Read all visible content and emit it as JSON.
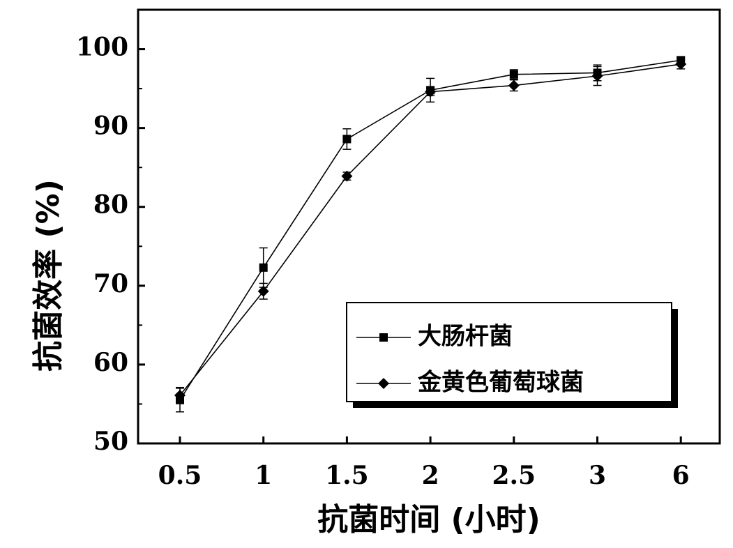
{
  "chart_data": {
    "type": "line",
    "title": "",
    "xlabel": "抗菌时间 (小时)",
    "ylabel": "抗菌效率 (%)",
    "categories": [
      "0.5",
      "1",
      "1.5",
      "2",
      "2.5",
      "3",
      "6"
    ],
    "ylim": [
      50,
      105
    ],
    "yticks": [
      50,
      60,
      70,
      80,
      90,
      100
    ],
    "grid": false,
    "legend_position": "bottom-right",
    "series": [
      {
        "name": "大肠杆菌",
        "marker": "square",
        "values": [
          55.5,
          72.3,
          88.6,
          94.8,
          96.8,
          97.0,
          98.6
        ],
        "errors": [
          1.5,
          2.5,
          1.3,
          1.5,
          0.6,
          1.0,
          0.4
        ]
      },
      {
        "name": "金黄色葡萄球菌",
        "marker": "diamond",
        "values": [
          56.1,
          69.3,
          83.9,
          94.6,
          95.4,
          96.6,
          98.1
        ],
        "errors": [
          1.0,
          1.0,
          0.5,
          0.5,
          0.7,
          1.2,
          0.6
        ]
      }
    ]
  }
}
